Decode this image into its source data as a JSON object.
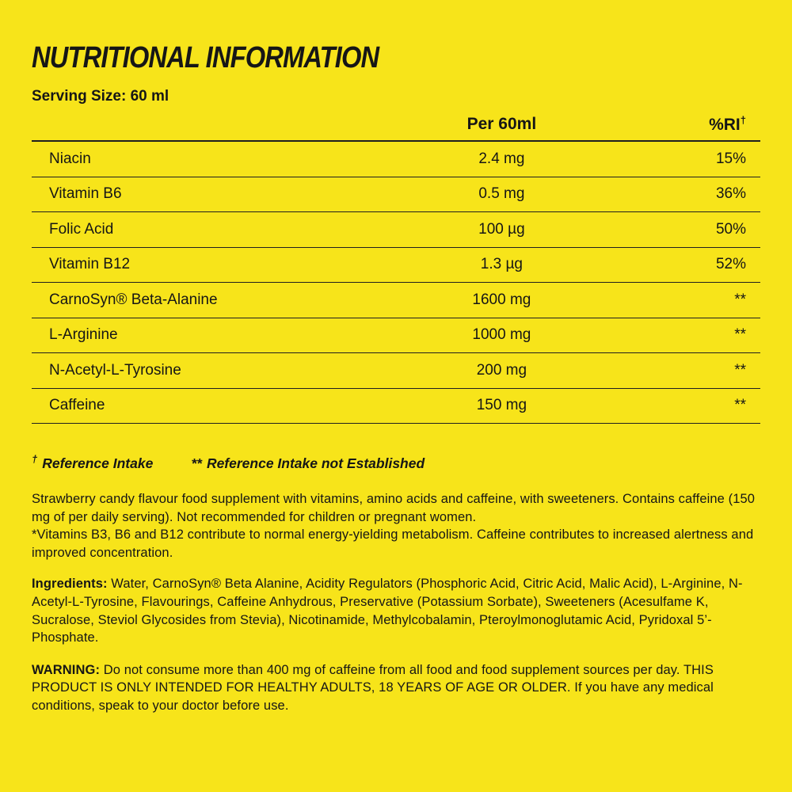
{
  "page": {
    "title": "NUTRITIONAL INFORMATION",
    "serving_size": "Serving Size: 60 ml"
  },
  "colors": {
    "background": "#F7E41A",
    "text": "#161616",
    "rule": "#1F1F1F"
  },
  "table": {
    "columns": {
      "amount": "Per 60ml",
      "ri": "%RI",
      "ri_sup": "†"
    },
    "rows": [
      {
        "name": "Niacin",
        "amount": "2.4 mg",
        "ri": "15%"
      },
      {
        "name": "Vitamin B6",
        "amount": "0.5 mg",
        "ri": "36%"
      },
      {
        "name": "Folic Acid",
        "amount": "100 µg",
        "ri": "50%"
      },
      {
        "name": "Vitamin B12",
        "amount": "1.3 µg",
        "ri": "52%"
      },
      {
        "name": "CarnoSyn® Beta-Alanine",
        "amount": "1600 mg",
        "ri": "**"
      },
      {
        "name": "L-Arginine",
        "amount": "1000 mg",
        "ri": "**"
      },
      {
        "name": "N-Acetyl-L-Tyrosine",
        "amount": "200 mg",
        "ri": "**"
      },
      {
        "name": "Caffeine",
        "amount": "150 mg",
        "ri": "**"
      }
    ]
  },
  "footnotes": {
    "ri": {
      "mark": "†",
      "text": "Reference Intake"
    },
    "ne": {
      "mark": "**",
      "text": "Reference Intake not Established"
    }
  },
  "description": {
    "p1": "Strawberry candy flavour food supplement with vitamins, amino acids and caffeine, with sweeteners. Contains caffeine (150 mg of per daily serving). Not recommended for children or pregnant women.",
    "p2": "*Vitamins B3, B6 and B12 contribute to normal energy-yielding metabolism. Caffeine contributes to increased alertness and improved concentration."
  },
  "ingredients": {
    "label": "Ingredients:",
    "text": " Water, CarnoSyn® Beta Alanine, Acidity Regulators (Phosphoric Acid, Citric Acid, Malic Acid), L-Arginine, N-Acetyl-L-Tyrosine, Flavourings, Caffeine Anhydrous, Preservative (Potassium Sorbate), Sweeteners (Acesulfame K, Sucralose, Steviol Glycosides from Stevia), Nicotinamide, Methylcobalamin, Pteroylmonoglutamic Acid, Pyridoxal 5’-Phosphate."
  },
  "warning": {
    "label": "WARNING:",
    "text": " Do not consume more than 400 mg of caffeine from all food and food supplement sources per day. THIS PRODUCT IS ONLY INTENDED FOR HEALTHY ADULTS, 18 YEARS OF AGE OR OLDER. If you have any medical conditions, speak to your doctor before use."
  }
}
